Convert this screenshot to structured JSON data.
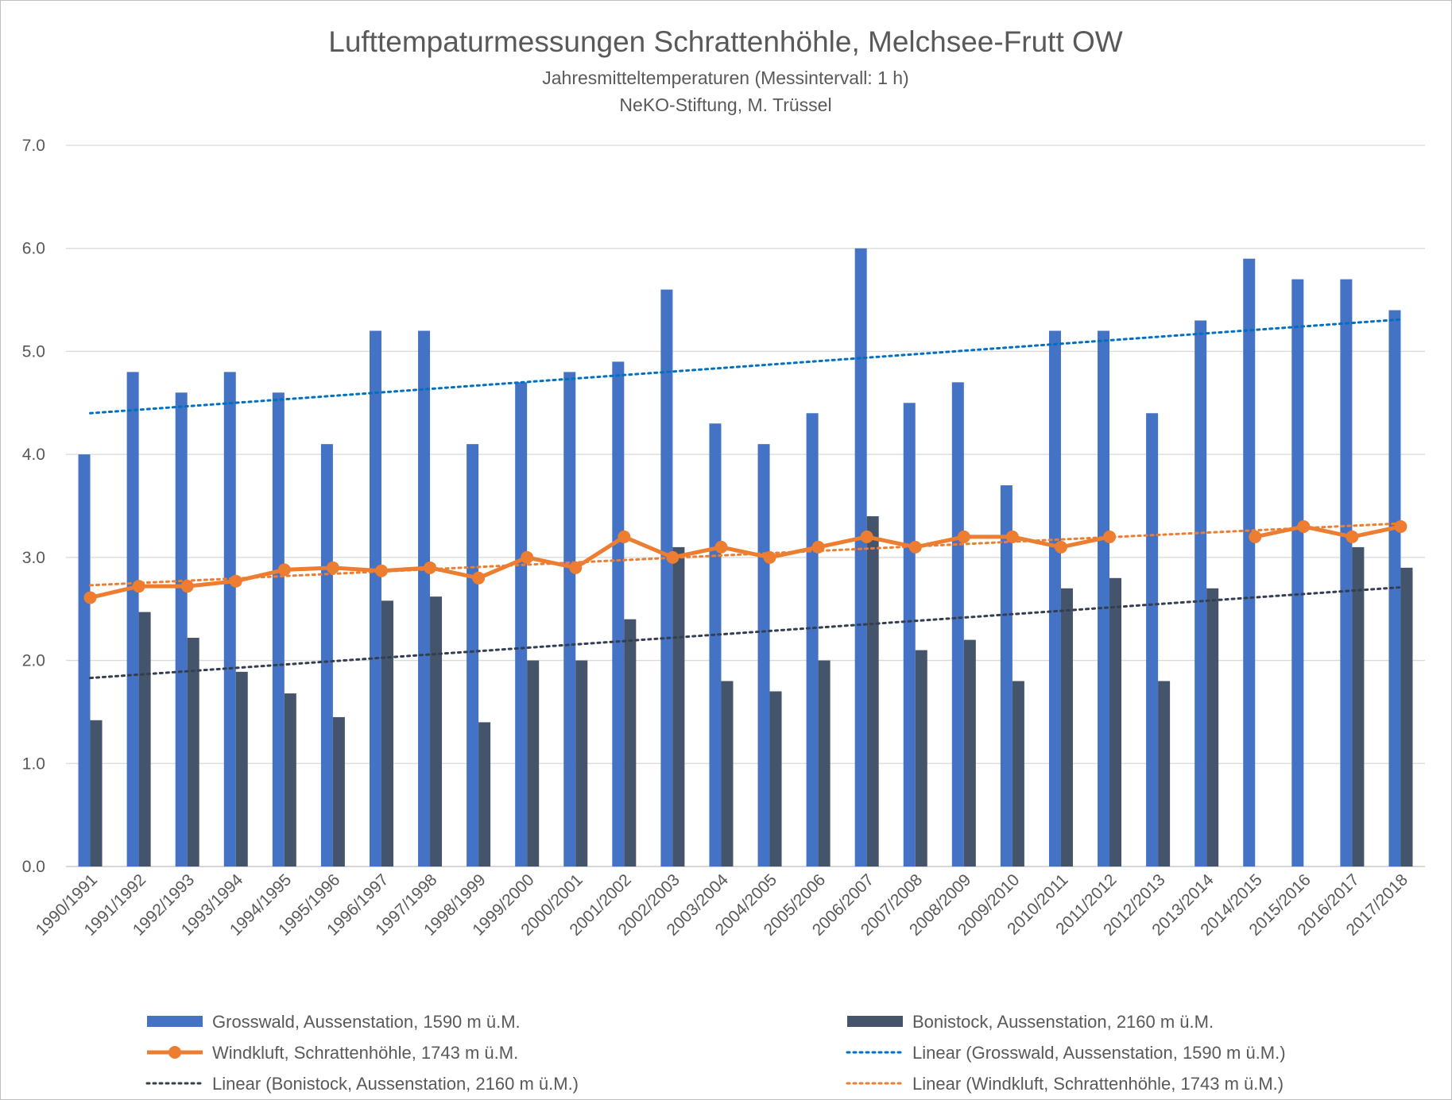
{
  "chart_data": {
    "type": "bar",
    "title": "Lufttempaturmessungen Schrattenhöhle, Melchsee-Frutt OW",
    "subtitle_lines": [
      "Jahresmitteltemperaturen (Messintervall: 1 h)",
      "NeKO-Stiftung, M. Trüssel"
    ],
    "ylim": [
      0,
      7
    ],
    "yticks": [
      "0.0",
      "1.0",
      "2.0",
      "3.0",
      "4.0",
      "5.0",
      "6.0",
      "7.0"
    ],
    "grid": true,
    "legend_position": "bottom",
    "categories": [
      "1990/1991",
      "1991/1992",
      "1992/1993",
      "1993/1994",
      "1994/1995",
      "1995/1996",
      "1996/1997",
      "1997/1998",
      "1998/1999",
      "1999/2000",
      "2000/2001",
      "2001/2002",
      "2002/2003",
      "2003/2004",
      "2004/2005",
      "2005/2006",
      "2006/2007",
      "2007/2008",
      "2008/2009",
      "2009/2010",
      "2010/2011",
      "2011/2012",
      "2012/2013",
      "2013/2014",
      "2014/2015",
      "2015/2016",
      "2016/2017",
      "2017/2018"
    ],
    "series": [
      {
        "name": "Grosswald, Aussenstation, 1590 m ü.M.",
        "type": "bar",
        "color": "#4472c4",
        "values": [
          4.0,
          4.8,
          4.6,
          4.8,
          4.6,
          4.1,
          5.2,
          5.2,
          4.1,
          4.7,
          4.8,
          4.9,
          5.6,
          4.3,
          4.1,
          4.4,
          6.0,
          4.5,
          4.7,
          3.7,
          5.2,
          5.2,
          4.4,
          5.3,
          5.9,
          5.7,
          5.7,
          5.4
        ]
      },
      {
        "name": "Bonistock, Aussenstation, 2160 m ü.M.",
        "type": "bar",
        "color": "#44546a",
        "values": [
          1.42,
          2.47,
          2.22,
          1.89,
          1.68,
          1.45,
          2.58,
          2.62,
          1.4,
          2.0,
          2.0,
          2.4,
          3.1,
          1.8,
          1.7,
          2.0,
          3.4,
          2.1,
          2.2,
          1.8,
          2.7,
          2.8,
          1.8,
          2.7,
          null,
          null,
          3.1,
          2.9
        ]
      },
      {
        "name": "Windkluft, Schrattenhöhle, 1743 m ü.M.",
        "type": "line",
        "color": "#ed7d31",
        "values": [
          2.61,
          2.72,
          2.72,
          2.77,
          2.88,
          2.9,
          2.87,
          2.9,
          2.8,
          3.0,
          2.9,
          3.2,
          3.0,
          3.1,
          3.0,
          3.1,
          3.2,
          3.1,
          3.2,
          3.2,
          3.1,
          3.2,
          null,
          null,
          3.2,
          3.3,
          3.2,
          3.3
        ]
      },
      {
        "name": "Linear (Grosswald, Aussenstation, 1590 m ü.M.)",
        "type": "trend",
        "color": "#0070c0",
        "start": 4.4,
        "end": 5.31
      },
      {
        "name": "Linear (Bonistock, Aussenstation, 2160 m ü.M.)",
        "type": "trend",
        "color": "#333f50",
        "start": 1.83,
        "end": 2.71
      },
      {
        "name": "Linear (Windkluft, Schrattenhöhle, 1743 m ü.M.)",
        "type": "trend",
        "color": "#ed7d31",
        "start": 2.73,
        "end": 3.33
      }
    ]
  }
}
